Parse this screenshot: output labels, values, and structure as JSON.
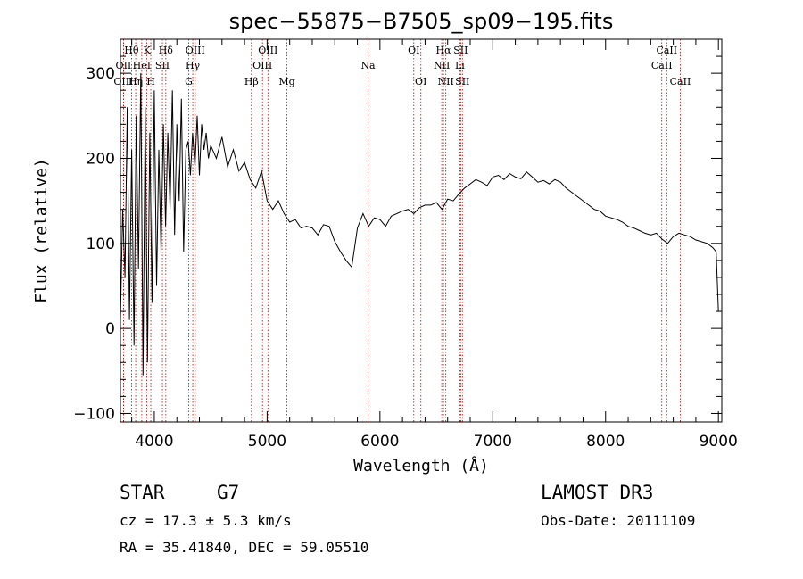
{
  "chart_data": {
    "type": "line",
    "title": "spec−55875−B7505_sp09−195.fits",
    "xlabel": "Wavelength (Å)",
    "ylabel": "Flux (relative)",
    "xlim": [
      3700,
      9030
    ],
    "ylim": [
      -110,
      340
    ],
    "xticks": [
      4000,
      5000,
      6000,
      7000,
      8000,
      9000
    ],
    "xtick_labels": [
      "4000",
      "5000",
      "6000",
      "7000",
      "8000",
      "9000"
    ],
    "yticks": [
      -100,
      0,
      100,
      200,
      300
    ],
    "ytick_labels": [
      "−100",
      "0",
      "100",
      "200",
      "300"
    ],
    "series": [
      {
        "name": "flux",
        "x": [
          3700,
          3720,
          3740,
          3760,
          3780,
          3800,
          3820,
          3840,
          3860,
          3880,
          3900,
          3920,
          3940,
          3960,
          3980,
          4000,
          4020,
          4040,
          4060,
          4080,
          4100,
          4120,
          4140,
          4160,
          4180,
          4200,
          4220,
          4240,
          4260,
          4280,
          4300,
          4320,
          4340,
          4360,
          4380,
          4400,
          4420,
          4440,
          4460,
          4480,
          4500,
          4550,
          4600,
          4650,
          4700,
          4750,
          4800,
          4850,
          4900,
          4950,
          5000,
          5050,
          5100,
          5150,
          5200,
          5250,
          5300,
          5350,
          5400,
          5450,
          5500,
          5550,
          5600,
          5650,
          5700,
          5750,
          5800,
          5850,
          5900,
          5950,
          6000,
          6050,
          6100,
          6150,
          6200,
          6250,
          6300,
          6350,
          6400,
          6450,
          6500,
          6550,
          6600,
          6650,
          6700,
          6750,
          6800,
          6850,
          6900,
          6950,
          7000,
          7050,
          7100,
          7150,
          7200,
          7250,
          7300,
          7350,
          7400,
          7450,
          7500,
          7550,
          7600,
          7650,
          7700,
          7750,
          7800,
          7850,
          7900,
          7950,
          8000,
          8050,
          8100,
          8150,
          8200,
          8250,
          8300,
          8350,
          8400,
          8450,
          8500,
          8550,
          8600,
          8650,
          8700,
          8750,
          8800,
          8850,
          8900,
          8950,
          8980,
          9000
        ],
        "y": [
          10,
          140,
          60,
          260,
          10,
          210,
          -20,
          250,
          70,
          300,
          -55,
          260,
          -40,
          230,
          30,
          280,
          50,
          210,
          90,
          240,
          120,
          230,
          140,
          280,
          110,
          240,
          150,
          270,
          90,
          210,
          220,
          180,
          230,
          190,
          250,
          180,
          240,
          210,
          230,
          200,
          215,
          200,
          225,
          190,
          210,
          185,
          195,
          175,
          165,
          185,
          150,
          140,
          150,
          135,
          125,
          128,
          118,
          120,
          118,
          110,
          122,
          120,
          102,
          90,
          80,
          72,
          118,
          135,
          120,
          130,
          128,
          120,
          132,
          135,
          138,
          140,
          135,
          142,
          145,
          145,
          148,
          140,
          152,
          150,
          158,
          165,
          170,
          175,
          172,
          168,
          178,
          180,
          175,
          182,
          178,
          176,
          184,
          178,
          172,
          174,
          170,
          175,
          172,
          165,
          160,
          155,
          150,
          145,
          140,
          138,
          132,
          130,
          128,
          125,
          120,
          118,
          115,
          112,
          110,
          112,
          105,
          100,
          108,
          112,
          110,
          108,
          104,
          102,
          100,
          95,
          90,
          20
        ]
      }
    ],
    "spectral_lines": [
      {
        "name": "Hθ",
        "wavelength": 3798,
        "row": 1
      },
      {
        "name": "OII",
        "wavelength": 3727,
        "row": 2
      },
      {
        "name": "OIII",
        "wavelength": 3727,
        "row": 3
      },
      {
        "name": "Hη",
        "wavelength": 3835,
        "row": 3
      },
      {
        "name": "K",
        "wavelength": 3934,
        "row": 1
      },
      {
        "name": "HeI",
        "wavelength": 3889,
        "row": 2
      },
      {
        "name": "H",
        "wavelength": 3969,
        "row": 3
      },
      {
        "name": "Hδ",
        "wavelength": 4102,
        "row": 1
      },
      {
        "name": "SII",
        "wavelength": 4072,
        "row": 2
      },
      {
        "name": "OIII",
        "wavelength": 4363,
        "row": 1
      },
      {
        "name": "Hγ",
        "wavelength": 4341,
        "row": 2
      },
      {
        "name": "G",
        "wavelength": 4305,
        "row": 3
      },
      {
        "name": "OIII",
        "wavelength": 5007,
        "row": 1
      },
      {
        "name": "OIII",
        "wavelength": 4959,
        "row": 2
      },
      {
        "name": "Hβ",
        "wavelength": 4861,
        "row": 3
      },
      {
        "name": "Mg",
        "wavelength": 5175,
        "row": 3
      },
      {
        "name": "Na",
        "wavelength": 5894,
        "row": 2
      },
      {
        "name": "OI",
        "wavelength": 6300,
        "row": 1
      },
      {
        "name": "OI",
        "wavelength": 6363,
        "row": 3
      },
      {
        "name": "Hα",
        "wavelength": 6563,
        "row": 1
      },
      {
        "name": "SII",
        "wavelength": 6716,
        "row": 1
      },
      {
        "name": "NII",
        "wavelength": 6548,
        "row": 2
      },
      {
        "name": "Li",
        "wavelength": 6708,
        "row": 2
      },
      {
        "name": "NII",
        "wavelength": 6584,
        "row": 3
      },
      {
        "name": "SII",
        "wavelength": 6731,
        "row": 3
      },
      {
        "name": "CaII",
        "wavelength": 8542,
        "row": 1
      },
      {
        "name": "CaII",
        "wavelength": 8498,
        "row": 2
      },
      {
        "name": "CaII",
        "wavelength": 8662,
        "row": 3
      }
    ]
  },
  "info": {
    "object_class": "STAR",
    "subclass": "G7",
    "survey": "LAMOST DR3",
    "redshift_line": "cz = 17.3 ± 5.3 km/s",
    "obs_date_line": "Obs-Date: 20111109",
    "coord_line": "RA =  35.41840, DEC =  59.05510"
  }
}
